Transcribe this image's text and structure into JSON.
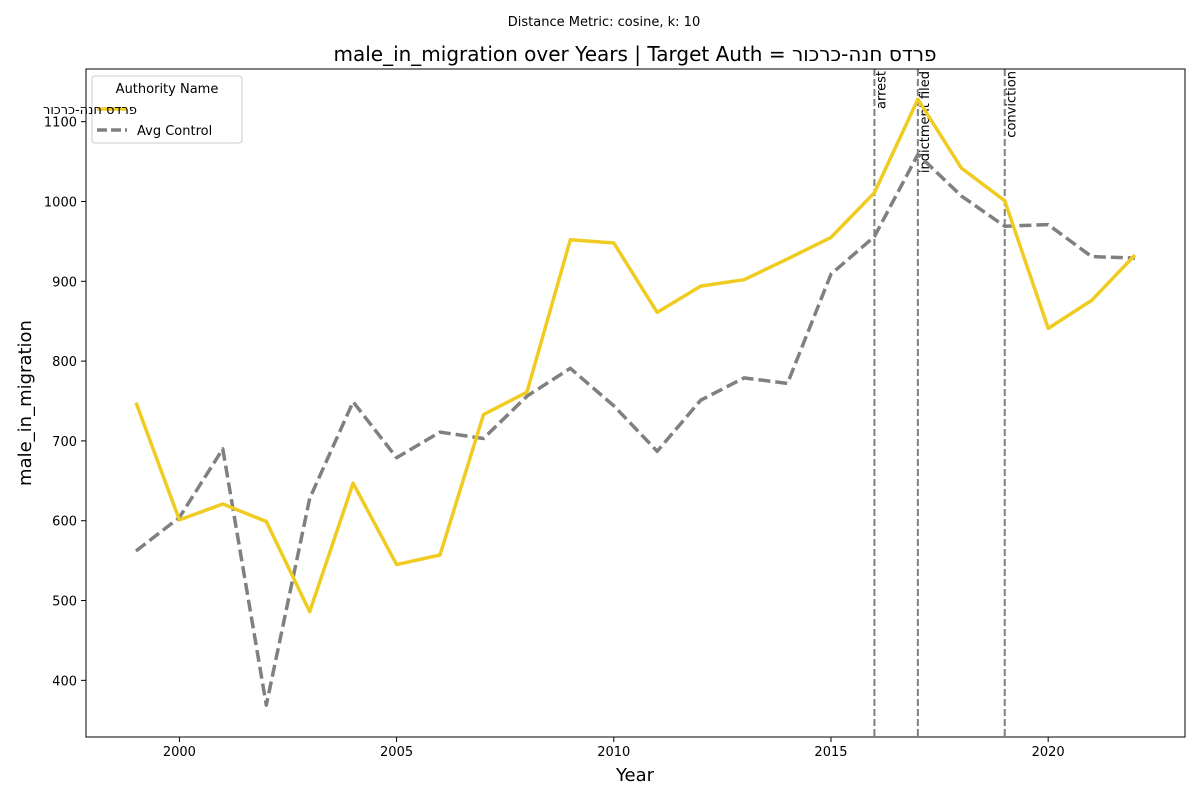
{
  "chart_data": {
    "type": "line",
    "suptitle": "Distance Metric: cosine, k: 10",
    "title": "male_in_migration over Years | Target Auth = פרדס חנה-כרכור",
    "xlabel": "Year",
    "ylabel": "male_in_migration",
    "xlim": [
      1997.85,
      2023.15
    ],
    "ylim": [
      329,
      1166
    ],
    "xticks": [
      2000,
      2005,
      2010,
      2015,
      2020
    ],
    "yticks": [
      400,
      500,
      600,
      700,
      800,
      900,
      1000,
      1100
    ],
    "grid": false,
    "legend": {
      "title": "Authority Name",
      "placement": "top-left"
    },
    "x": [
      1999,
      2000,
      2001,
      2002,
      2003,
      2004,
      2005,
      2006,
      2007,
      2008,
      2009,
      2010,
      2011,
      2012,
      2013,
      2014,
      2015,
      2016,
      2017,
      2018,
      2019,
      2020,
      2021,
      2022
    ],
    "series": [
      {
        "name": "פרדס חנה-כרכור",
        "color": "#f0cc22",
        "style": "solid",
        "values": [
          748,
          601,
          621,
          599,
          486,
          647,
          545,
          557,
          733,
          761,
          952,
          948,
          861,
          894,
          902,
          928,
          955,
          1011,
          1128,
          1042,
          1001,
          841,
          876,
          933
        ]
      },
      {
        "name": "Avg Control",
        "color": "#808080",
        "style": "dashed",
        "values": [
          562,
          604,
          690,
          369,
          628,
          749,
          679,
          711,
          703,
          756,
          791,
          744,
          687,
          751,
          779,
          772,
          909,
          956,
          1059,
          1007,
          969,
          971,
          931,
          929
        ]
      }
    ],
    "events": [
      {
        "x": 2016,
        "label": "arrest"
      },
      {
        "x": 2017,
        "label": "indictment filed"
      },
      {
        "x": 2019,
        "label": "conviction"
      }
    ]
  }
}
